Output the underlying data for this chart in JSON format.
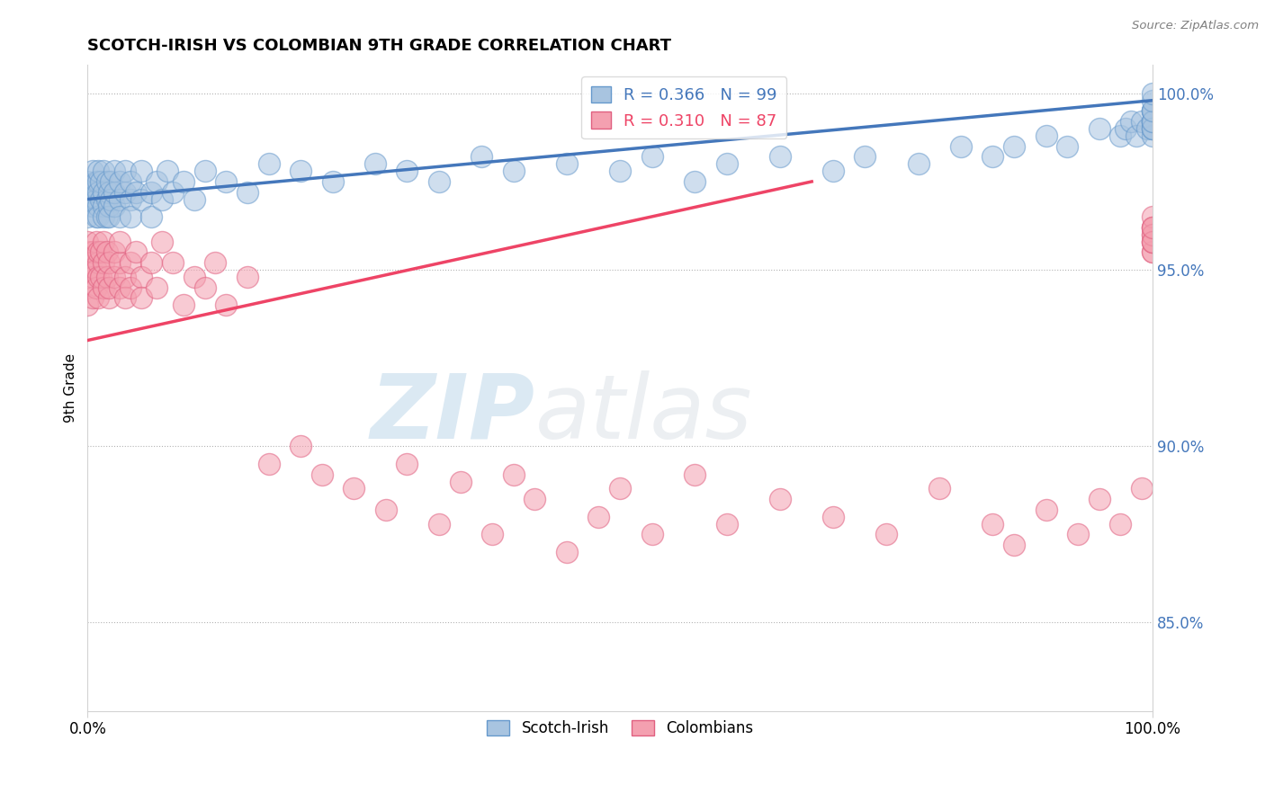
{
  "title": "SCOTCH-IRISH VS COLOMBIAN 9TH GRADE CORRELATION CHART",
  "source_text": "Source: ZipAtlas.com",
  "ylabel": "9th Grade",
  "legend_labels": [
    "Scotch-Irish",
    "Colombians"
  ],
  "blue_r": 0.366,
  "blue_n": 99,
  "pink_r": 0.31,
  "pink_n": 87,
  "blue_color": "#A8C4E0",
  "pink_color": "#F4A0B0",
  "blue_edge_color": "#6699CC",
  "pink_edge_color": "#E06080",
  "blue_line_color": "#4477BB",
  "pink_line_color": "#EE4466",
  "xlim": [
    0.0,
    1.0
  ],
  "ylim": [
    0.825,
    1.008
  ],
  "right_yticks": [
    0.85,
    0.9,
    0.95,
    1.0
  ],
  "right_ytick_labels": [
    "85.0%",
    "90.0%",
    "95.0%",
    "100.0%"
  ],
  "xtick_labels": [
    "0.0%",
    "100.0%"
  ],
  "xtick_positions": [
    0.0,
    1.0
  ],
  "blue_x": [
    0.0,
    0.0,
    0.0,
    0.0,
    0.0,
    0.005,
    0.005,
    0.005,
    0.005,
    0.008,
    0.008,
    0.008,
    0.01,
    0.01,
    0.01,
    0.01,
    0.01,
    0.012,
    0.012,
    0.015,
    0.015,
    0.015,
    0.015,
    0.018,
    0.018,
    0.018,
    0.02,
    0.02,
    0.02,
    0.022,
    0.022,
    0.025,
    0.025,
    0.025,
    0.03,
    0.03,
    0.03,
    0.035,
    0.035,
    0.04,
    0.04,
    0.04,
    0.045,
    0.05,
    0.05,
    0.06,
    0.06,
    0.065,
    0.07,
    0.075,
    0.08,
    0.09,
    0.1,
    0.11,
    0.13,
    0.15,
    0.17,
    0.2,
    0.23,
    0.27,
    0.3,
    0.33,
    0.37,
    0.4,
    0.45,
    0.5,
    0.53,
    0.57,
    0.6,
    0.65,
    0.7,
    0.73,
    0.78,
    0.82,
    0.85,
    0.87,
    0.9,
    0.92,
    0.95,
    0.97,
    0.975,
    0.98,
    0.985,
    0.99,
    0.995,
    1.0,
    1.0,
    1.0,
    1.0,
    1.0,
    1.0,
    1.0,
    1.0,
    1.0,
    1.0,
    1.0,
    1.0,
    1.0,
    1.0
  ],
  "blue_y": [
    0.97,
    0.975,
    0.968,
    0.972,
    0.965,
    0.972,
    0.968,
    0.974,
    0.978,
    0.97,
    0.975,
    0.965,
    0.968,
    0.975,
    0.972,
    0.965,
    0.978,
    0.97,
    0.975,
    0.968,
    0.972,
    0.965,
    0.978,
    0.97,
    0.975,
    0.965,
    0.968,
    0.972,
    0.965,
    0.97,
    0.975,
    0.968,
    0.972,
    0.978,
    0.97,
    0.975,
    0.965,
    0.972,
    0.978,
    0.97,
    0.975,
    0.965,
    0.972,
    0.97,
    0.978,
    0.965,
    0.972,
    0.975,
    0.97,
    0.978,
    0.972,
    0.975,
    0.97,
    0.978,
    0.975,
    0.972,
    0.98,
    0.978,
    0.975,
    0.98,
    0.978,
    0.975,
    0.982,
    0.978,
    0.98,
    0.978,
    0.982,
    0.975,
    0.98,
    0.982,
    0.978,
    0.982,
    0.98,
    0.985,
    0.982,
    0.985,
    0.988,
    0.985,
    0.99,
    0.988,
    0.99,
    0.992,
    0.988,
    0.992,
    0.99,
    0.995,
    0.992,
    0.99,
    0.995,
    0.992,
    0.988,
    0.99,
    0.992,
    0.995,
    0.99,
    0.992,
    0.995,
    0.998,
    1.0
  ],
  "pink_x": [
    0.0,
    0.0,
    0.0,
    0.0,
    0.0,
    0.0,
    0.005,
    0.005,
    0.005,
    0.008,
    0.008,
    0.008,
    0.01,
    0.01,
    0.01,
    0.01,
    0.012,
    0.012,
    0.015,
    0.015,
    0.015,
    0.018,
    0.018,
    0.02,
    0.02,
    0.02,
    0.025,
    0.025,
    0.03,
    0.03,
    0.03,
    0.035,
    0.035,
    0.04,
    0.04,
    0.045,
    0.05,
    0.05,
    0.06,
    0.065,
    0.07,
    0.08,
    0.09,
    0.1,
    0.11,
    0.12,
    0.13,
    0.15,
    0.17,
    0.2,
    0.22,
    0.25,
    0.28,
    0.3,
    0.33,
    0.35,
    0.38,
    0.4,
    0.42,
    0.45,
    0.48,
    0.5,
    0.53,
    0.57,
    0.6,
    0.65,
    0.7,
    0.75,
    0.8,
    0.85,
    0.87,
    0.9,
    0.93,
    0.95,
    0.97,
    0.99,
    1.0,
    1.0,
    1.0,
    1.0,
    1.0,
    1.0,
    1.0,
    1.0,
    1.0,
    1.0,
    1.0
  ],
  "pink_y": [
    0.955,
    0.95,
    0.945,
    0.958,
    0.952,
    0.94,
    0.948,
    0.955,
    0.942,
    0.95,
    0.945,
    0.958,
    0.952,
    0.948,
    0.955,
    0.942,
    0.948,
    0.955,
    0.952,
    0.945,
    0.958,
    0.948,
    0.955,
    0.942,
    0.952,
    0.945,
    0.948,
    0.955,
    0.952,
    0.945,
    0.958,
    0.948,
    0.942,
    0.952,
    0.945,
    0.955,
    0.948,
    0.942,
    0.952,
    0.945,
    0.958,
    0.952,
    0.94,
    0.948,
    0.945,
    0.952,
    0.94,
    0.948,
    0.895,
    0.9,
    0.892,
    0.888,
    0.882,
    0.895,
    0.878,
    0.89,
    0.875,
    0.892,
    0.885,
    0.87,
    0.88,
    0.888,
    0.875,
    0.892,
    0.878,
    0.885,
    0.88,
    0.875,
    0.888,
    0.878,
    0.872,
    0.882,
    0.875,
    0.885,
    0.878,
    0.888,
    0.955,
    0.96,
    0.962,
    0.958,
    0.955,
    0.962,
    0.958,
    0.965,
    0.96,
    0.958,
    0.962
  ],
  "blue_trend_x0": 0.0,
  "blue_trend_x1": 1.0,
  "blue_trend_y0": 0.97,
  "blue_trend_y1": 0.998,
  "pink_trend_x0": 0.0,
  "pink_trend_x1": 0.68,
  "pink_trend_y0": 0.93,
  "pink_trend_y1": 0.975
}
